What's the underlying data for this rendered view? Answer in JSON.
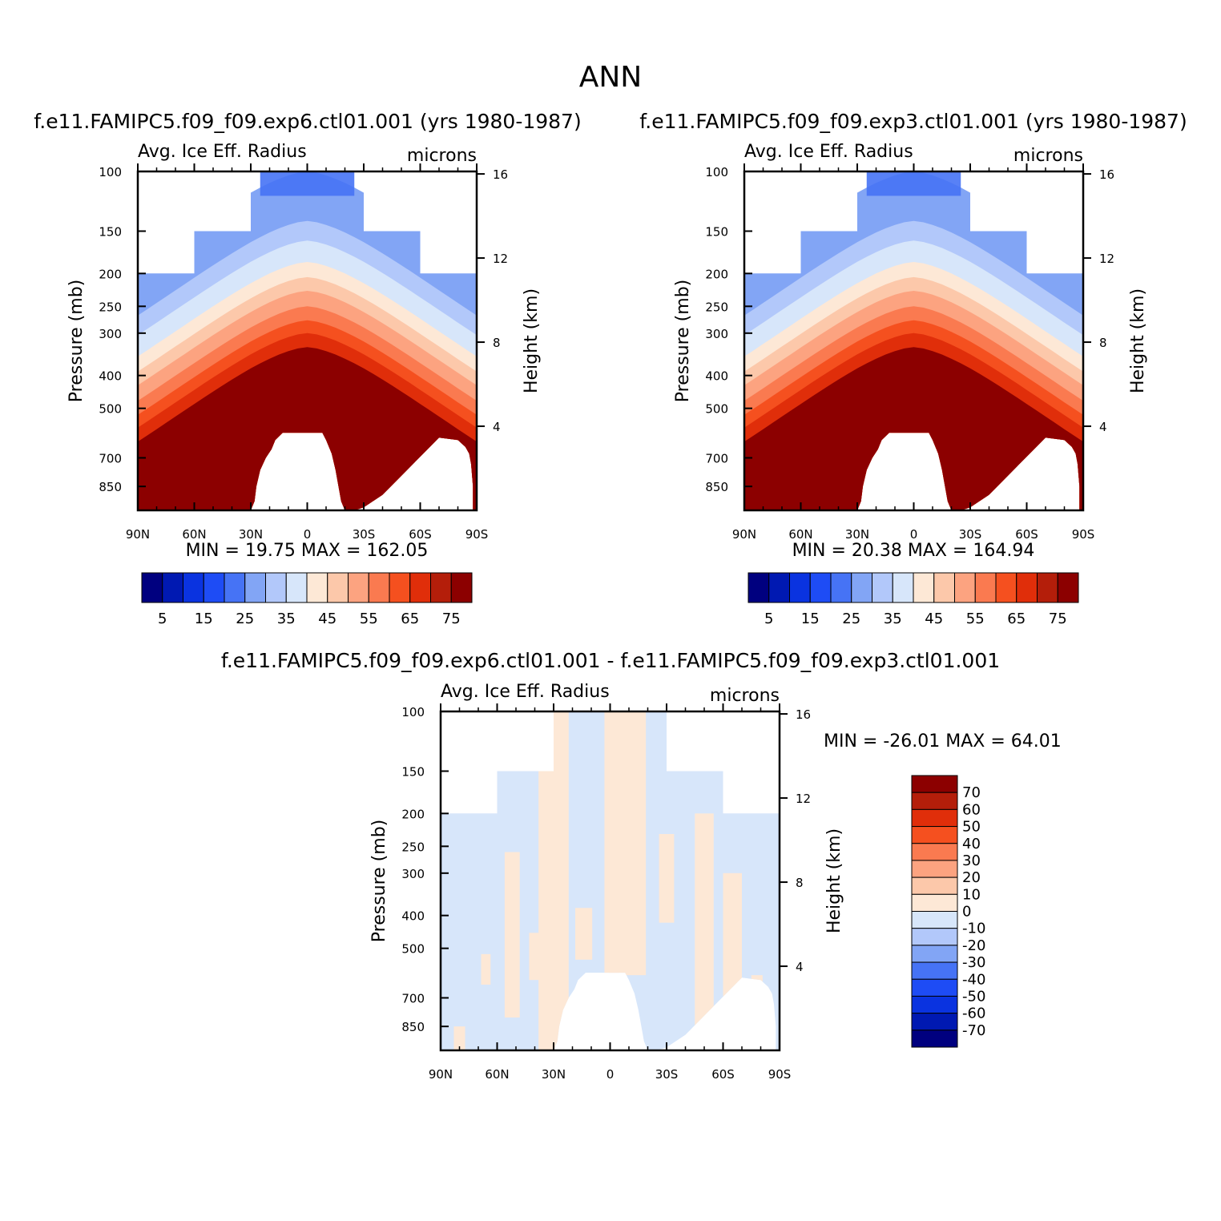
{
  "figure": {
    "title": "ANN",
    "panel_left_case": "f.e11.FAMIPC5.f09_f09.exp6.ctl01.001 (yrs 1980-1987)",
    "panel_right_case": "f.e11.FAMIPC5.f09_f09.exp3.ctl01.001 (yrs 1980-1987)",
    "diff_case": "f.e11.FAMIPC5.f09_f09.exp6.ctl01.001 - f.e11.FAMIPC5.f09_f09.exp3.ctl01.001"
  },
  "chart_data": [
    {
      "type": "heatmap",
      "variable": "Avg. Ice Eff. Radius",
      "units": "microns",
      "ylabel_left": "Pressure (mb)",
      "ylabel_right": "Height (km)",
      "x_ticks": [
        "90N",
        "60N",
        "30N",
        "0",
        "30S",
        "60S",
        "90S"
      ],
      "x_range": [
        90,
        -90
      ],
      "pressure_ticks": [
        100,
        150,
        200,
        250,
        300,
        400,
        500,
        700,
        850
      ],
      "height_ticks": [
        16,
        12,
        8,
        4
      ],
      "ylim_mb": [
        100,
        1000
      ],
      "y_scale": "log",
      "min_text": "MIN =  19.75",
      "max_text": "MAX = 162.05",
      "colorbar": {
        "orientation": "horizontal",
        "labels": [
          "5",
          "15",
          "25",
          "35",
          "45",
          "55",
          "65",
          "75"
        ]
      }
    },
    {
      "type": "heatmap",
      "variable": "Avg. Ice Eff. Radius",
      "units": "microns",
      "ylabel_left": "Pressure (mb)",
      "ylabel_right": "Height (km)",
      "x_ticks": [
        "90N",
        "60N",
        "30N",
        "0",
        "30S",
        "60S",
        "90S"
      ],
      "x_range": [
        90,
        -90
      ],
      "pressure_ticks": [
        100,
        150,
        200,
        250,
        300,
        400,
        500,
        700,
        850
      ],
      "height_ticks": [
        16,
        12,
        8,
        4
      ],
      "ylim_mb": [
        100,
        1000
      ],
      "y_scale": "log",
      "min_text": "MIN =  20.38",
      "max_text": "MAX = 164.94",
      "colorbar": {
        "orientation": "horizontal",
        "labels": [
          "5",
          "15",
          "25",
          "35",
          "45",
          "55",
          "65",
          "75"
        ]
      }
    },
    {
      "type": "heatmap",
      "variable": "Avg. Ice Eff. Radius",
      "units": "microns",
      "ylabel_left": "Pressure (mb)",
      "ylabel_right": "Height (km)",
      "x_ticks": [
        "90N",
        "60N",
        "30N",
        "0",
        "30S",
        "60S",
        "90S"
      ],
      "x_range": [
        90,
        -90
      ],
      "pressure_ticks": [
        100,
        150,
        200,
        250,
        300,
        400,
        500,
        700,
        850
      ],
      "height_ticks": [
        16,
        12,
        8,
        4
      ],
      "ylim_mb": [
        100,
        1000
      ],
      "y_scale": "log",
      "min_text": "MIN = -26.01",
      "max_text": "MAX =  64.01",
      "colorbar": {
        "orientation": "vertical",
        "labels": [
          "70",
          "60",
          "50",
          "40",
          "30",
          "20",
          "10",
          "0",
          "-10",
          "-20",
          "-30",
          "-40",
          "-50",
          "-60",
          "-70"
        ]
      }
    }
  ],
  "colors": {
    "scale": [
      "#00007f",
      "#0019b2",
      "#0a33e0",
      "#1e4cf5",
      "#4673f5",
      "#82a5f5",
      "#b2c8fa",
      "#d7e6fa",
      "#fde8d6",
      "#fcc8aa",
      "#fca380",
      "#fa7a50",
      "#f5501f",
      "#e02e0a",
      "#b41e0a",
      "#8c0000"
    ],
    "accent_dark": "#8c0000",
    "light_blue": "#d7e6fa",
    "light_peach": "#fde8d6"
  }
}
